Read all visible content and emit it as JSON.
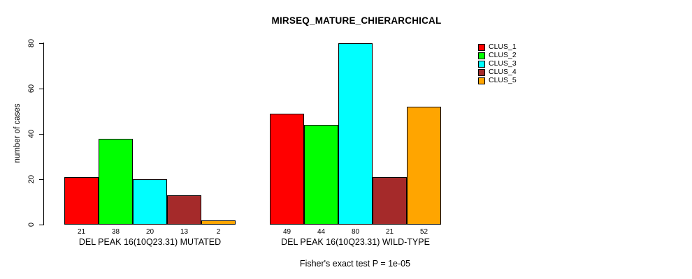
{
  "chart_data": {
    "type": "bar",
    "title": "MIRSEQ_MATURE_CHIERARCHICAL",
    "ylabel": "number of cases",
    "xlabel": "",
    "ylim": [
      0,
      80
    ],
    "yticks": [
      0,
      20,
      40,
      60,
      80
    ],
    "grid": false,
    "legend_position": "right",
    "background_color": "#FFFFFF",
    "bar_outline_color": "#000000",
    "series": [
      {
        "name": "CLUS_1",
        "color": "#FF0000"
      },
      {
        "name": "CLUS_2",
        "color": "#00FF00"
      },
      {
        "name": "CLUS_3",
        "color": "#00FFFF"
      },
      {
        "name": "CLUS_4",
        "color": "#A52A2A"
      },
      {
        "name": "CLUS_5",
        "color": "#FFA500"
      }
    ],
    "groups": [
      {
        "label": "DEL PEAK 16(10Q23.31) MUTATED",
        "values": [
          21,
          38,
          20,
          13,
          2
        ]
      },
      {
        "label": "DEL PEAK 16(10Q23.31) WILD-TYPE",
        "values": [
          49,
          44,
          80,
          21,
          52
        ]
      }
    ],
    "caption": "Fisher's exact test P = 1e-05"
  }
}
